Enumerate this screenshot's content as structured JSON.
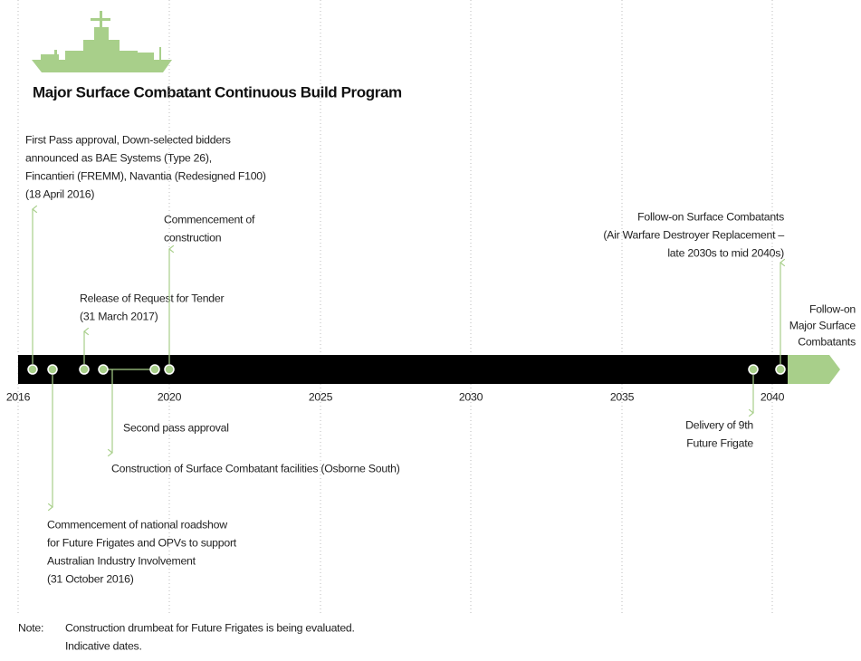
{
  "title": "Major Surface Combatant Continuous Build Program",
  "axis": {
    "years": [
      "2016",
      "2020",
      "2025",
      "2030",
      "2035",
      "2040"
    ]
  },
  "events": [
    {
      "lines": [
        "First Pass approval, Down-selected bidders",
        "announced as BAE Systems (Type 26),",
        "Fincantieri (FREMM), Navantia (Redesigned F100)",
        "(18 April 2016)"
      ]
    },
    {
      "lines": [
        "Commencement of national roadshow",
        "for Future Frigates and OPVs to support",
        "Australian Industry Involvement",
        "(31 October 2016)"
      ]
    },
    {
      "lines": [
        "Release of Request for Tender",
        "(31 March 2017)"
      ]
    },
    {
      "lines": [
        "Second pass approval"
      ]
    },
    {
      "lines": [
        "Construction of Surface Combatant facilities (Osborne South)"
      ]
    },
    {
      "lines": [
        "Commencement of",
        "construction"
      ]
    },
    {
      "lines": [
        "Follow-on Surface Combatants",
        "(Air Warfare Destroyer Replacement –",
        "late 2030s to mid 2040s)"
      ]
    },
    {
      "lines": [
        "Delivery of 9th",
        "Future Frigate"
      ]
    }
  ],
  "end_label": {
    "lines": [
      "Follow-on",
      "Major Surface",
      "Combatants"
    ]
  },
  "note": {
    "label": "Note:",
    "lines": [
      "Construction drumbeat for Future Frigates is being evaluated.",
      "Indicative dates."
    ]
  }
}
